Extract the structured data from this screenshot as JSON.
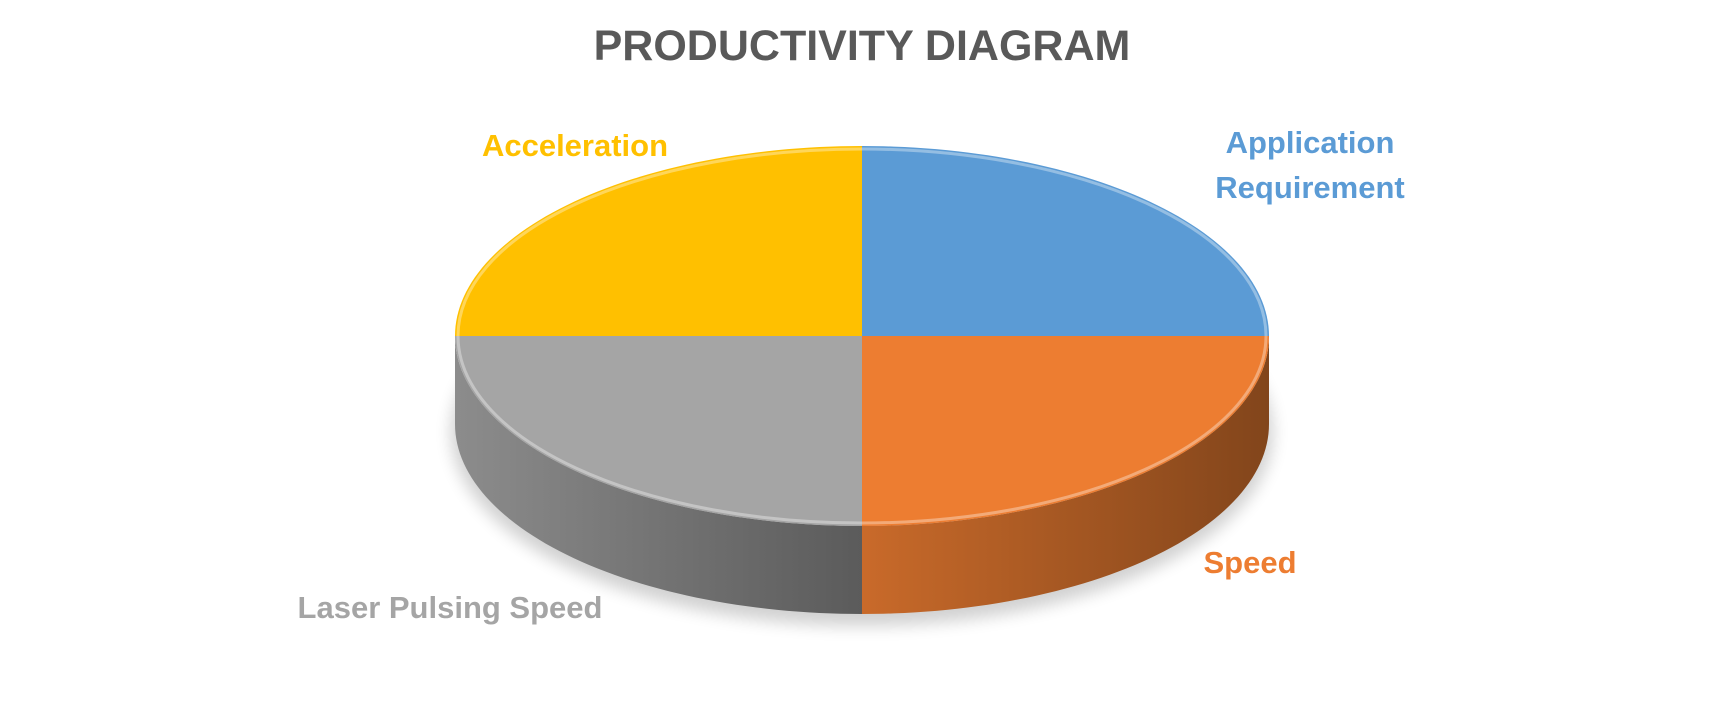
{
  "chart_data": {
    "type": "pie",
    "title": "PRODUCTIVITY DIAGRAM",
    "categories": [
      "Application Requirement",
      "Speed",
      "Laser Pulsing Speed",
      "Acceleration"
    ],
    "values": [
      25,
      25,
      25,
      25
    ],
    "colors": [
      "#5b9bd5",
      "#ed7d31",
      "#a5a5a5",
      "#ffc000"
    ]
  }
}
